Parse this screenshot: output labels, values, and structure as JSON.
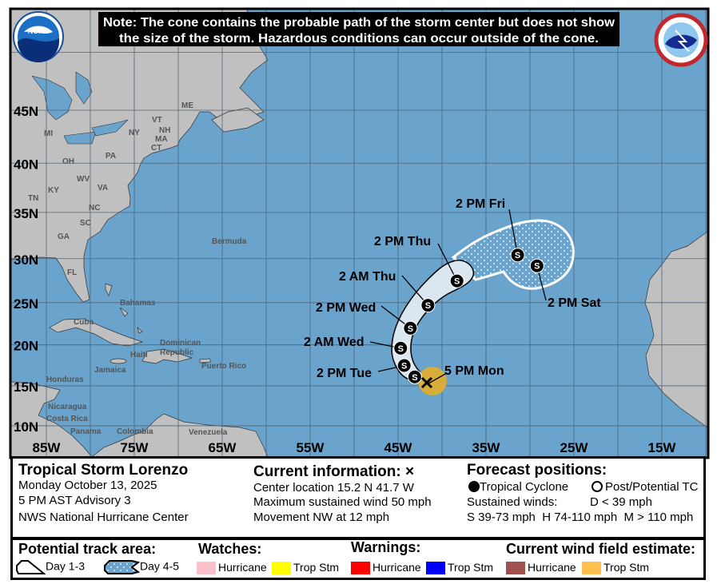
{
  "note": {
    "line1": "Note: The cone contains the probable path of the storm center but does not show",
    "line2": "the size of the storm. Hazardous conditions can occur outside of the cone."
  },
  "logos": {
    "noaa": "NOAA",
    "nws": "NATIONAL WEATHER SERVICE"
  },
  "colors": {
    "ocean": "#6aa3cc",
    "land": "#c0c0c0",
    "cone_day13": "#dbe7f0",
    "wind_trop_stm_map": "#d8ad3a"
  },
  "map": {
    "lon_labels": [
      "85W",
      "75W",
      "65W",
      "55W",
      "45W",
      "35W",
      "25W",
      "15W"
    ],
    "lat_labels": [
      "45N",
      "40N",
      "35N",
      "30N",
      "25N",
      "20N",
      "15N",
      "10N"
    ],
    "places": [
      {
        "name": "Bermuda"
      },
      {
        "name": "Bahamas"
      },
      {
        "name": "Cuba"
      },
      {
        "name": "Jamaica"
      },
      {
        "name": "Dominican"
      },
      {
        "name": "Republic"
      },
      {
        "name": "Haiti"
      },
      {
        "name": "Puerto Rico"
      },
      {
        "name": "Venezuela"
      },
      {
        "name": "Colombia"
      },
      {
        "name": "Panama"
      },
      {
        "name": "Costa Rica"
      },
      {
        "name": "Nicaragua"
      },
      {
        "name": "Honduras"
      },
      {
        "name": "ME"
      },
      {
        "name": "VT"
      },
      {
        "name": "NH"
      },
      {
        "name": "MA"
      },
      {
        "name": "CT"
      },
      {
        "name": "NY"
      },
      {
        "name": "MI"
      },
      {
        "name": "PA"
      },
      {
        "name": "OH"
      },
      {
        "name": "WV"
      },
      {
        "name": "VA"
      },
      {
        "name": "KY"
      },
      {
        "name": "TN"
      },
      {
        "name": "NC"
      },
      {
        "name": "SC"
      },
      {
        "name": "GA"
      },
      {
        "name": "FL"
      }
    ]
  },
  "storm": {
    "current": {
      "label": "5 PM Mon",
      "lat": 15.2,
      "lon": 41.7
    },
    "forecast": [
      {
        "label": "",
        "lat": 16.1,
        "lon": 43.1,
        "type": "S"
      },
      {
        "label": "2 PM Tue",
        "lat": 17.5,
        "lon": 44.3,
        "type": "S"
      },
      {
        "label": "2 AM Wed",
        "lat": 19.6,
        "lon": 44.7,
        "type": "S"
      },
      {
        "label": "2 PM Wed",
        "lat": 22.0,
        "lon": 43.6,
        "type": "S"
      },
      {
        "label": "2 AM Thu",
        "lat": 24.7,
        "lon": 41.6,
        "type": "S"
      },
      {
        "label": "2 PM Thu",
        "lat": 27.5,
        "lon": 38.3,
        "type": "S"
      },
      {
        "label": "2 PM Fri",
        "lat": 30.4,
        "lon": 31.4,
        "type": "S"
      },
      {
        "label": "2 PM Sat",
        "lat": 29.2,
        "lon": 29.2,
        "type": "S"
      }
    ]
  },
  "info": {
    "storm_name": "Tropical Storm Lorenzo",
    "date": "Monday October 13, 2025",
    "advisory": "5 PM AST Advisory 3",
    "center": "NWS National Hurricane Center",
    "current_title": "Current information: ×",
    "location": "Center location 15.2 N 41.7 W",
    "wind": "Maximum sustained wind 50 mph",
    "movement": "Movement NW at 12 mph",
    "forecast_title": "Forecast positions:",
    "tc": "Tropical Cyclone",
    "post_tc": "Post/Potential TC",
    "sustained": "Sustained winds:",
    "d": "D < 39 mph",
    "shm": "S 39-73 mph  H 74-110 mph  M > 110 mph"
  },
  "legend": {
    "track_title": "Potential track area:",
    "day13": "Day 1-3",
    "day45": "Day 4-5",
    "watches_title": "Watches:",
    "warnings_title": "Warnings:",
    "wind_title": "Current wind field estimate:",
    "watch_hurricane": {
      "label": "Hurricane",
      "color": "#ffc0cb"
    },
    "watch_ts": {
      "label": "Trop Stm",
      "color": "#ffff00"
    },
    "warn_hurricane": {
      "label": "Hurricane",
      "color": "#ff0000"
    },
    "warn_ts": {
      "label": "Trop Stm",
      "color": "#0000ff"
    },
    "wind_hurricane": {
      "label": "Hurricane",
      "color": "#a0504f"
    },
    "wind_ts": {
      "label": "Trop Stm",
      "color": "#ffc04d"
    }
  }
}
